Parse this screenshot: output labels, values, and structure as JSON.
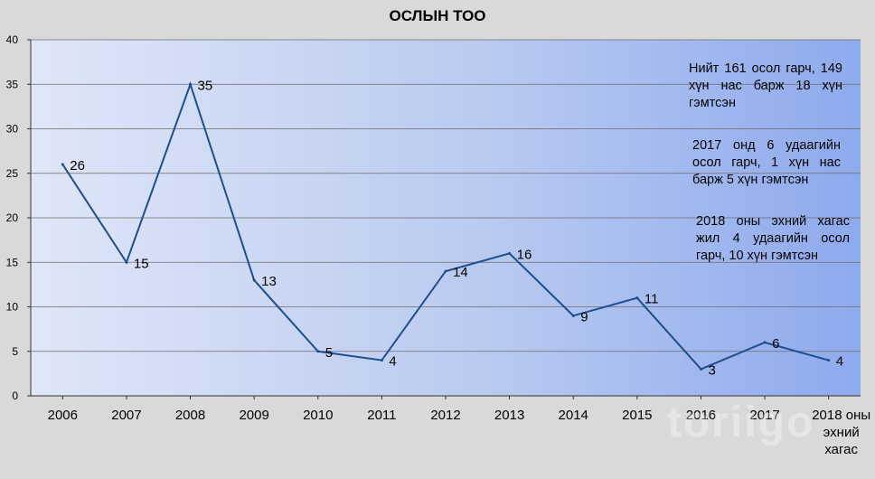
{
  "chart_data": {
    "type": "line",
    "title": "ОСЛЫН ТОО",
    "categories": [
      "2006",
      "2007",
      "2008",
      "2009",
      "2010",
      "2011",
      "2012",
      "2013",
      "2014",
      "2015",
      "2016",
      "2017",
      "2018 оны эхний хагас жил"
    ],
    "values": [
      26,
      15,
      35,
      13,
      5,
      4,
      14,
      16,
      9,
      11,
      3,
      6,
      4
    ],
    "ylim": [
      0,
      40
    ],
    "yticks": [
      0,
      5,
      10,
      15,
      20,
      25,
      30,
      35,
      40
    ],
    "grid": true,
    "series_color": "#1f4e8c",
    "annotations": [
      "Нийт 161 осол гарч, 149 хүн нас барж 18 хүн гэмтсэн",
      "2017 онд 6 удаагийн осол гарч, 1 хүн нас барж 5 хүн гэмтсэн",
      "2018 оны эхний хагас жил 4 удаагийн осол гарч, 10 хүн гэмтсэн"
    ]
  },
  "watermark": "toriigo"
}
